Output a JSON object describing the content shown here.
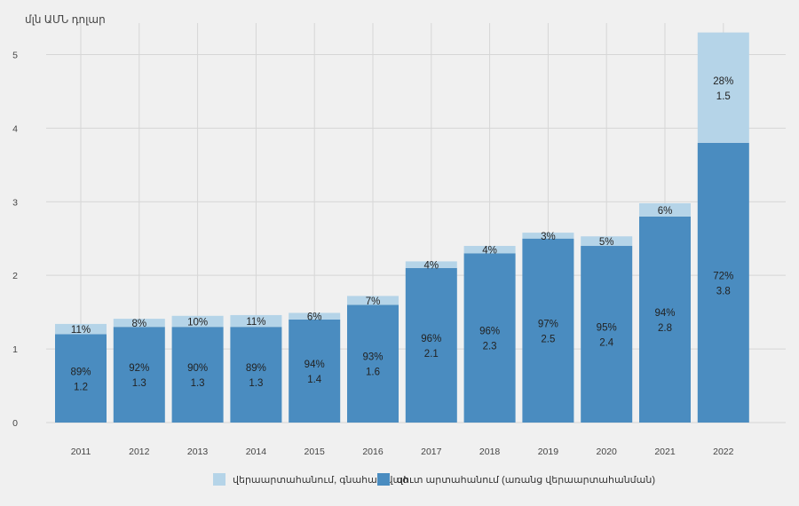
{
  "chart_data": {
    "type": "bar",
    "stacked": true,
    "unit_label": "մլն ԱՄՆ դոլար",
    "categories": [
      "2011",
      "2012",
      "2013",
      "2014",
      "2015",
      "2016",
      "2017",
      "2018",
      "2019",
      "2020",
      "2021",
      "2022"
    ],
    "ylim": [
      0,
      5.5
    ],
    "yticks": [
      0,
      1,
      2,
      3,
      4,
      5
    ],
    "grid": true,
    "legend_position": "bottom",
    "series": [
      {
        "name": "զուտ արտահանում (առանց վերաարտահանման)",
        "color": "#4a8cc0",
        "values": [
          1.2,
          1.3,
          1.3,
          1.3,
          1.4,
          1.6,
          2.1,
          2.3,
          2.5,
          2.4,
          2.8,
          3.8
        ],
        "value_labels": [
          "1.2",
          "1.3",
          "1.3",
          "1.3",
          "1.4",
          "1.6",
          "2.1",
          "2.3",
          "2.5",
          "2.4",
          "2.8",
          "3.8"
        ],
        "percent_labels": [
          "89%",
          "92%",
          "90%",
          "89%",
          "94%",
          "93%",
          "96%",
          "96%",
          "97%",
          "95%",
          "94%",
          "72%"
        ]
      },
      {
        "name": "վերաարտահանում, գնահատված",
        "color": "#b5d4e8",
        "values": [
          0.14,
          0.11,
          0.15,
          0.16,
          0.09,
          0.12,
          0.09,
          0.1,
          0.08,
          0.13,
          0.18,
          1.5
        ],
        "value_labels": [
          "",
          "",
          "",
          "",
          "",
          "",
          "",
          "",
          "",
          "",
          "",
          "1.5"
        ],
        "percent_labels": [
          "11%",
          "8%",
          "10%",
          "11%",
          "6%",
          "7%",
          "4%",
          "4%",
          "3%",
          "5%",
          "6%",
          "28%"
        ]
      }
    ]
  }
}
